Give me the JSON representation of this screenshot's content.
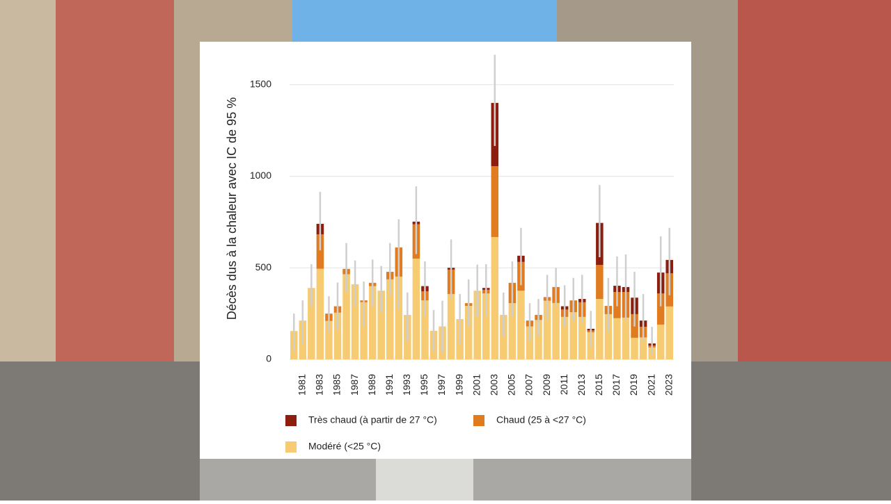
{
  "chart_data": {
    "type": "stacked_bar",
    "y_label": "Décès dus à la chaleur avec IC de 95 %",
    "categories": [
      null,
      "1981",
      null,
      "1983",
      null,
      "1985",
      null,
      "1987",
      null,
      "1989",
      null,
      "1991",
      null,
      "1993",
      null,
      "1995",
      null,
      "1997",
      null,
      "1999",
      null,
      "2001",
      null,
      "2003",
      null,
      "2005",
      null,
      "2007",
      null,
      "2009",
      null,
      "2011",
      null,
      "2013",
      null,
      "2015",
      null,
      "2017",
      null,
      "2019",
      null,
      "2021",
      null,
      "2023"
    ],
    "series": [
      {
        "name": "Très chaud (à partir de 27 °C)",
        "color": "#8b1e0e",
        "values": [
          0,
          0,
          0,
          57,
          0,
          0,
          0,
          0,
          0,
          0,
          0,
          0,
          0,
          0,
          14,
          28,
          0,
          0,
          10,
          0,
          0,
          0,
          10,
          345,
          0,
          0,
          34,
          0,
          0,
          0,
          0,
          18,
          0,
          18,
          9,
          229,
          0,
          34,
          27,
          90,
          34,
          12,
          114,
          73
        ]
      },
      {
        "name": "Chaud (25 à <27 °C)",
        "color": "#e07b20",
        "values": [
          0,
          0,
          0,
          188,
          40,
          35,
          29,
          0,
          10,
          18,
          0,
          41,
          159,
          0,
          188,
          50,
          0,
          0,
          133,
          0,
          15,
          0,
          20,
          387,
          0,
          111,
          157,
          32,
          28,
          20,
          87,
          40,
          64,
          80,
          10,
          186,
          45,
          143,
          140,
          129,
          58,
          10,
          170,
          181
        ]
      },
      {
        "name": "Modéré (<25 °C)",
        "color": "#f6cb72",
        "values": [
          155,
          212,
          390,
          495,
          210,
          255,
          465,
          410,
          312,
          400,
          375,
          437,
          452,
          243,
          550,
          322,
          156,
          180,
          357,
          220,
          292,
          375,
          360,
          668,
          243,
          307,
          375,
          180,
          215,
          320,
          308,
          232,
          258,
          232,
          148,
          330,
          247,
          225,
          228,
          118,
          120,
          65,
          190,
          289
        ]
      }
    ],
    "error_low": [
      45,
      85,
      290,
      595,
      150,
      160,
      370,
      290,
      180,
      290,
      255,
      350,
      275,
      100,
      575,
      235,
      45,
      35,
      330,
      85,
      180,
      235,
      235,
      1165,
      125,
      235,
      405,
      100,
      130,
      215,
      290,
      180,
      210,
      200,
      65,
      558,
      150,
      290,
      215,
      180,
      100,
      25,
      290,
      350
    ],
    "error_high": [
      250,
      322,
      520,
      915,
      345,
      420,
      635,
      540,
      425,
      545,
      510,
      635,
      765,
      365,
      945,
      535,
      270,
      320,
      655,
      357,
      437,
      517,
      520,
      1663,
      365,
      535,
      718,
      307,
      330,
      462,
      500,
      405,
      445,
      462,
      265,
      952,
      445,
      562,
      573,
      478,
      357,
      178,
      672,
      718
    ],
    "ylim": [
      0,
      1700
    ],
    "yticks": [
      0,
      500,
      1000,
      1500
    ],
    "grid": true
  }
}
